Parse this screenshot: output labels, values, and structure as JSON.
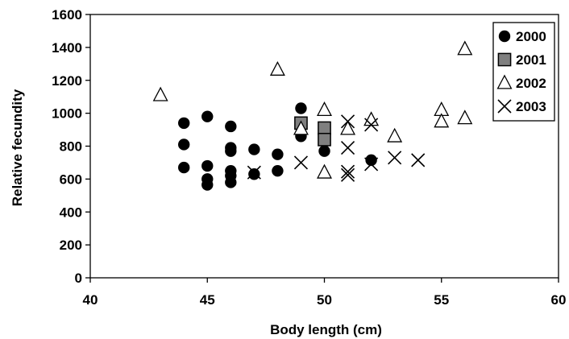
{
  "chart_data": {
    "type": "scatter",
    "title": "",
    "xlabel": "Body length (cm)",
    "ylabel": "Relative fecundity",
    "xlim": [
      40,
      60
    ],
    "ylim": [
      0,
      1600
    ],
    "x_ticks": [
      40,
      45,
      50,
      55,
      60
    ],
    "y_ticks": [
      0,
      200,
      400,
      600,
      800,
      1000,
      1200,
      1400,
      1600
    ],
    "grid": false,
    "legend": "top-right",
    "series": [
      {
        "name": "2000",
        "marker": "filled-circle",
        "color": "#000000",
        "points": [
          [
            44,
            940
          ],
          [
            44,
            810
          ],
          [
            44,
            670
          ],
          [
            45,
            980
          ],
          [
            45,
            680
          ],
          [
            45,
            600
          ],
          [
            45,
            565
          ],
          [
            46,
            920
          ],
          [
            46,
            790
          ],
          [
            46,
            770
          ],
          [
            46,
            650
          ],
          [
            46,
            620
          ],
          [
            46,
            580
          ],
          [
            47,
            780
          ],
          [
            47,
            630
          ],
          [
            48,
            750
          ],
          [
            48,
            650
          ],
          [
            49,
            1030
          ],
          [
            49,
            860
          ],
          [
            50,
            770
          ],
          [
            52,
            715
          ]
        ]
      },
      {
        "name": "2001",
        "marker": "gray-square",
        "color": "#7f7f7f",
        "points": [
          [
            49,
            940
          ],
          [
            50,
            910
          ],
          [
            50,
            840
          ]
        ]
      },
      {
        "name": "2002",
        "marker": "open-triangle",
        "color": "#000000",
        "points": [
          [
            43,
            1110
          ],
          [
            48,
            1265
          ],
          [
            49,
            905
          ],
          [
            50,
            1020
          ],
          [
            50,
            640
          ],
          [
            51,
            905
          ],
          [
            52,
            960
          ],
          [
            53,
            860
          ],
          [
            55,
            1020
          ],
          [
            55,
            950
          ],
          [
            56,
            1390
          ],
          [
            56,
            970
          ]
        ]
      },
      {
        "name": "2003",
        "marker": "cross",
        "color": "#000000",
        "points": [
          [
            47,
            640
          ],
          [
            49,
            700
          ],
          [
            51,
            950
          ],
          [
            51,
            790
          ],
          [
            51,
            645
          ],
          [
            51,
            625
          ],
          [
            52,
            930
          ],
          [
            52,
            690
          ],
          [
            53,
            730
          ],
          [
            54,
            715
          ]
        ]
      }
    ]
  }
}
